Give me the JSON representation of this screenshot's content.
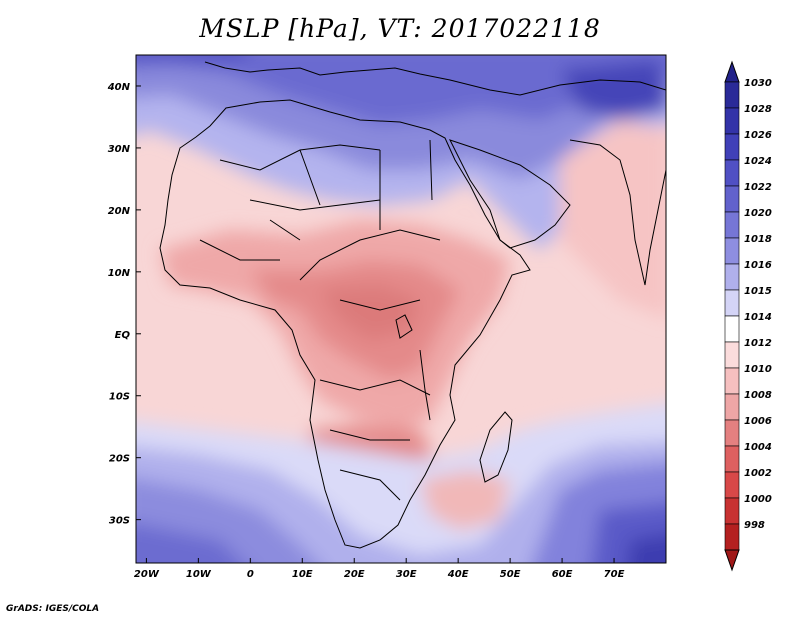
{
  "title": "MSLP [hPa], VT: 2017022118",
  "credit": "GrADS: IGES/COLA",
  "map": {
    "lon_range": [
      -22,
      80
    ],
    "lat_range": [
      -37,
      45
    ],
    "lat_ticks": [
      {
        "value": 40,
        "label": "40N"
      },
      {
        "value": 30,
        "label": "30N"
      },
      {
        "value": 20,
        "label": "20N"
      },
      {
        "value": 10,
        "label": "10N"
      },
      {
        "value": 0,
        "label": "EQ"
      },
      {
        "value": -10,
        "label": "10S"
      },
      {
        "value": -20,
        "label": "20S"
      },
      {
        "value": -30,
        "label": "30S"
      }
    ],
    "lon_ticks": [
      {
        "value": -20,
        "label": "20W"
      },
      {
        "value": -10,
        "label": "10W"
      },
      {
        "value": 0,
        "label": "0"
      },
      {
        "value": 10,
        "label": "10E"
      },
      {
        "value": 20,
        "label": "20E"
      },
      {
        "value": 30,
        "label": "30E"
      },
      {
        "value": 40,
        "label": "40E"
      },
      {
        "value": 50,
        "label": "50E"
      },
      {
        "value": 60,
        "label": "60E"
      },
      {
        "value": 70,
        "label": "70E"
      }
    ]
  },
  "colorbar": {
    "items": [
      {
        "label": "1030",
        "color": "#2a2a98"
      },
      {
        "label": "1028",
        "color": "#3333a8"
      },
      {
        "label": "1026",
        "color": "#4040b8"
      },
      {
        "label": "1024",
        "color": "#5050c4"
      },
      {
        "label": "1022",
        "color": "#6262cc"
      },
      {
        "label": "1020",
        "color": "#7676d6"
      },
      {
        "label": "1018",
        "color": "#8e8ee0"
      },
      {
        "label": "1016",
        "color": "#b0b0ec"
      },
      {
        "label": "1015",
        "color": "#d4d4f6"
      },
      {
        "label": "1014",
        "color": "#ffffff"
      },
      {
        "label": "1012",
        "color": "#fbdcdc"
      },
      {
        "label": "1010",
        "color": "#f6c0c0"
      },
      {
        "label": "1008",
        "color": "#eea6a6"
      },
      {
        "label": "1006",
        "color": "#e48080"
      },
      {
        "label": "1004",
        "color": "#de6060"
      },
      {
        "label": "1002",
        "color": "#d84848"
      },
      {
        "label": "1000",
        "color": "#c83232"
      },
      {
        "label": "998",
        "color": "#b42020"
      }
    ],
    "top_arrow_color": "#22228a",
    "bottom_arrow_color": "#a01818"
  }
}
